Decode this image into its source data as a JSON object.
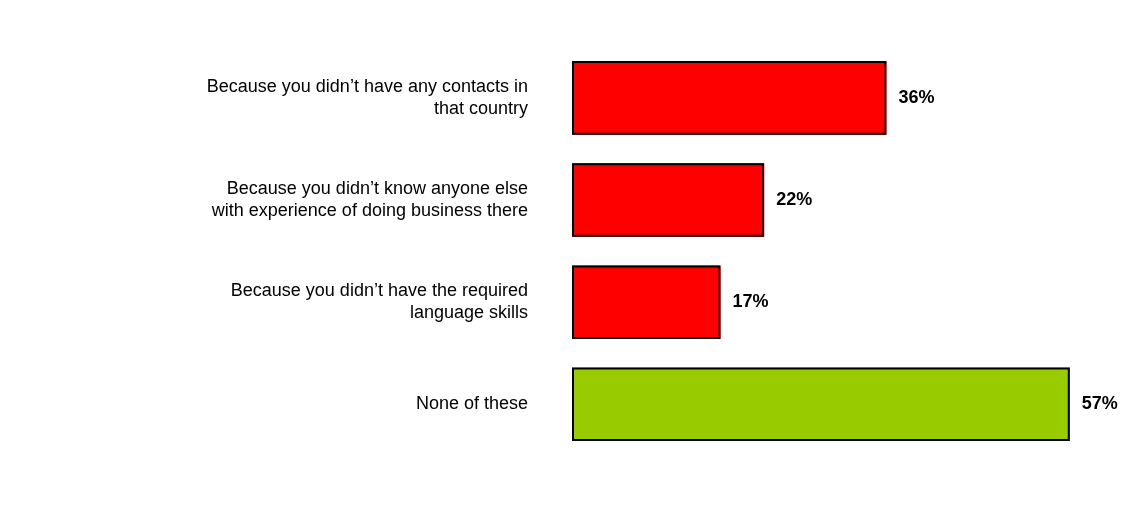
{
  "chart_data": {
    "type": "bar",
    "orientation": "horizontal",
    "categories": [
      "Because you didn’t have any contacts in that country",
      "Because you didn’t know anyone else with experience of doing business there",
      "Because you didn’t have the required language skills",
      "None of these"
    ],
    "values": [
      36,
      22,
      17,
      57
    ],
    "colors": [
      "#ff0000",
      "#ff0000",
      "#ff0000",
      "#99cc00"
    ],
    "value_labels": [
      "36%",
      "22%",
      "17%",
      "57%"
    ],
    "tick_labels": "y",
    "legend": false
  }
}
